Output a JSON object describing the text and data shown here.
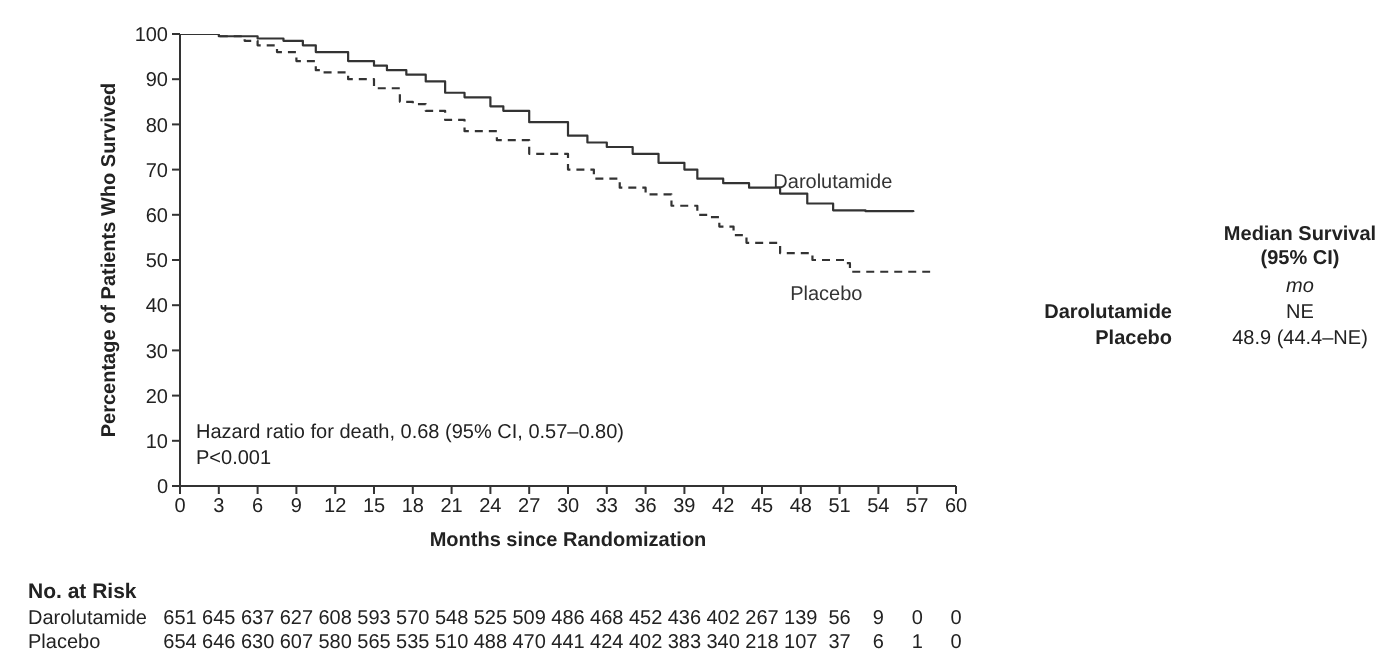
{
  "chart_data": {
    "type": "step",
    "xlabel": "Months since Randomization",
    "ylabel": "Percentage of Patients Who Survived",
    "xlim": [
      0,
      60
    ],
    "xticks": [
      0,
      3,
      6,
      9,
      12,
      15,
      18,
      21,
      24,
      27,
      30,
      33,
      36,
      39,
      42,
      45,
      48,
      51,
      54,
      57,
      60
    ],
    "ylim": [
      0,
      100
    ],
    "yticks": [
      0,
      10,
      20,
      30,
      40,
      50,
      60,
      70,
      80,
      90,
      100
    ],
    "grid": false,
    "legend": false,
    "series": [
      {
        "name": "Darolutamide",
        "color": "#333333",
        "line_style": "solid",
        "x": [
          0,
          3,
          6,
          8,
          9.5,
          10.5,
          13,
          15,
          16,
          17.5,
          19,
          20.5,
          22,
          24,
          25,
          27,
          30,
          31.5,
          33,
          35,
          37,
          39,
          40,
          42,
          44,
          46.4,
          48.5,
          50.5,
          53,
          56.7
        ],
        "values": [
          100,
          99.5,
          99,
          98.5,
          97.5,
          96,
          94,
          93,
          92,
          91,
          89.5,
          87,
          86,
          84,
          83,
          80.5,
          77.5,
          76,
          75,
          73.5,
          71.5,
          70,
          68,
          67,
          66,
          64.7,
          62.5,
          61,
          60.8,
          60.6
        ]
      },
      {
        "name": "Placebo",
        "color": "#333333",
        "line_style": "dashed",
        "x": [
          0,
          3,
          5,
          6,
          7.5,
          9,
          10.5,
          11,
          13,
          15,
          17,
          18,
          19,
          20.5,
          22,
          24.5,
          27,
          30,
          32,
          34,
          36,
          38,
          40,
          41,
          41.7,
          42.8,
          43.8,
          46.4,
          48.9,
          51.5,
          51.8,
          58
        ],
        "values": [
          100,
          99.5,
          98.5,
          97.5,
          96,
          94,
          92,
          91.5,
          90,
          88,
          85,
          84.5,
          83,
          81,
          78.5,
          76.5,
          73.5,
          70,
          68,
          66,
          64.5,
          62,
          60,
          59.5,
          57.4,
          55.5,
          53.8,
          51.5,
          50,
          49.3,
          47.4,
          47.4
        ]
      }
    ],
    "annotations": [
      "Hazard ratio for death, 0.68 (95% CI, 0.57–0.80)",
      "P<0.001",
      "Median Survival",
      "(95% CI)",
      "mo",
      "Darolutamide",
      "NE",
      "Placebo",
      "48.9 (44.4–NE)",
      "No. at Risk",
      "Darolutamide",
      "651 645 637 627 608 593 570 548 525 509 486 468 452 436 402 267 139 56 9 0 0",
      "Placebo",
      "654 646 630 607 580 565 535 510 488 470 441 424 402 383 340 218 107 37 6 1 0"
    ]
  }
}
